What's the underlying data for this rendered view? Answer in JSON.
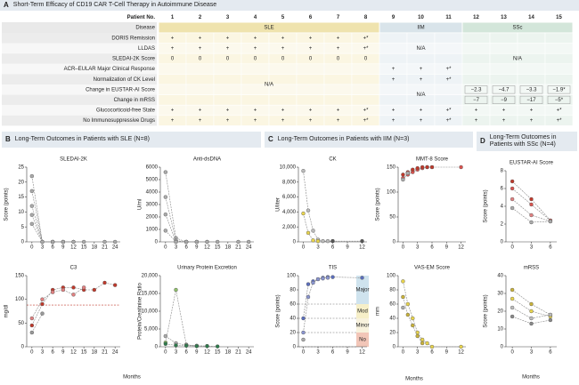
{
  "panel_a": {
    "label": "A",
    "title": "Short-Term Efficacy of CD19 CAR T-Cell Therapy in Autoimmune Disease",
    "patient_header": "Patient No.",
    "patients": [
      1,
      2,
      3,
      4,
      5,
      6,
      7,
      8,
      9,
      10,
      11,
      12,
      13,
      14,
      15
    ],
    "disease_header": "Disease",
    "diseases": [
      "SLE",
      "IIM",
      "SSc"
    ],
    "rows": [
      {
        "label": "DORIS Remission",
        "cells": [
          "+",
          "+",
          "+",
          "+",
          "+",
          "+",
          "+",
          "+*",
          null,
          null,
          null,
          null,
          null,
          null,
          null
        ]
      },
      {
        "label": "LLDAS",
        "cells": [
          "+",
          "+",
          "+",
          "+",
          "+",
          "+",
          "+",
          "+*",
          null,
          null,
          null,
          null,
          null,
          null,
          null
        ]
      },
      {
        "label": "SLEDAI-2K Score",
        "cells": [
          "0",
          "0",
          "0",
          "0",
          "0",
          "0",
          "0",
          "0",
          null,
          null,
          null,
          null,
          null,
          null,
          null
        ]
      },
      {
        "label": "ACR–EULAR Major Clinical Response",
        "cells": [
          null,
          null,
          null,
          null,
          null,
          null,
          null,
          null,
          "+",
          "+",
          "+*",
          null,
          null,
          null,
          null
        ]
      },
      {
        "label": "Normalization of CK Level",
        "cells": [
          null,
          null,
          null,
          null,
          null,
          null,
          null,
          null,
          "+",
          "+",
          "+*",
          null,
          null,
          null,
          null
        ]
      },
      {
        "label": "Change in EUSTAR-AI Score",
        "cells": [
          null,
          null,
          null,
          null,
          null,
          null,
          null,
          null,
          null,
          null,
          null,
          "−2.3",
          "−4.7",
          "−3.3",
          "−1.9*"
        ]
      },
      {
        "label": "Change in mRSS",
        "cells": [
          null,
          null,
          null,
          null,
          null,
          null,
          null,
          null,
          null,
          null,
          null,
          "−7",
          "−9",
          "−17",
          "−5*"
        ]
      },
      {
        "label": "Glucocorticoid-free State",
        "cells": [
          "+",
          "+",
          "+",
          "+",
          "+",
          "+",
          "+",
          "+*",
          "+",
          "+",
          "+*",
          "+",
          "+",
          "+",
          "+*"
        ]
      },
      {
        "label": "No Immunosuppressive Drugs",
        "cells": [
          "+",
          "+",
          "+",
          "+",
          "+",
          "+",
          "+",
          "+*",
          "+",
          "+",
          "+*",
          "+",
          "+",
          "+",
          "+*"
        ]
      }
    ],
    "na_blocks": [
      "N/A",
      "N/A",
      "N/A",
      "N/A"
    ]
  },
  "panels": [
    {
      "label": "B",
      "title": "Long-Term Outcomes in Patients with SLE (N=8)",
      "x_label": "Months"
    },
    {
      "label": "C",
      "title": "Long-Term Outcomes in Patients with IIM (N=3)",
      "x_label": "Months"
    },
    {
      "label": "D",
      "title": "Long-Term Outcomes in Patients with SSc (N=4)",
      "x_label": "Months"
    }
  ],
  "chart_data": [
    {
      "type": "line",
      "title": "SLEDAI-2K",
      "y_label": "Score (points)",
      "x": [
        0,
        3,
        6,
        9,
        12,
        15,
        18,
        21,
        24
      ],
      "xlim": [
        -1.5,
        25.5
      ],
      "xticks": [
        0,
        3,
        6,
        9,
        12,
        15,
        18,
        21,
        24
      ],
      "ylim": [
        0,
        25
      ],
      "yticks": [
        0,
        5,
        10,
        15,
        20,
        25
      ],
      "series": [
        {
          "color": "#aaaaaa",
          "values": [
            22,
            0,
            0,
            0,
            0,
            0,
            null,
            0,
            0
          ]
        },
        {
          "color": "#aaaaaa",
          "values": [
            17,
            0,
            0,
            0,
            0,
            null,
            null,
            null,
            null
          ]
        },
        {
          "color": "#aaaaaa",
          "values": [
            12,
            0,
            0,
            0,
            null,
            null,
            null,
            null,
            null
          ]
        },
        {
          "color": "#aaaaaa",
          "values": [
            9,
            0,
            0,
            null,
            null,
            null,
            null,
            null,
            null
          ]
        },
        {
          "color": "#aaaaaa",
          "values": [
            6,
            0,
            null,
            null,
            null,
            null,
            null,
            null,
            null
          ]
        }
      ]
    },
    {
      "type": "line",
      "title": "Anti-dsDNA",
      "y_label": "U/ml",
      "x": [
        0,
        3,
        6,
        9,
        12,
        15,
        18,
        21,
        24
      ],
      "xlim": [
        -1.5,
        25.5
      ],
      "xticks": [
        0,
        3,
        6,
        9,
        12,
        15,
        18,
        21,
        24
      ],
      "ylim": [
        0,
        6000
      ],
      "yticks": [
        0,
        1000,
        2000,
        3000,
        4000,
        5000,
        6000
      ],
      "series": [
        {
          "color": "#aaaaaa",
          "values": [
            5600,
            300,
            0,
            0,
            0,
            0,
            null,
            0,
            0
          ]
        },
        {
          "color": "#aaaaaa",
          "values": [
            3600,
            100,
            0,
            0,
            0,
            null,
            null,
            null,
            null
          ]
        },
        {
          "color": "#aaaaaa",
          "values": [
            2200,
            0,
            0,
            0,
            null,
            null,
            null,
            null,
            null
          ]
        },
        {
          "color": "#aaaaaa",
          "values": [
            900,
            0,
            0,
            null,
            null,
            null,
            null,
            null,
            null
          ]
        }
      ]
    },
    {
      "type": "line",
      "title": "C3",
      "y_label": "mg/dl",
      "x": [
        0,
        3,
        6,
        9,
        12,
        15,
        18,
        21,
        24
      ],
      "xlim": [
        -1.5,
        25.5
      ],
      "xticks": [
        0,
        3,
        6,
        9,
        12,
        15,
        18,
        21,
        24
      ],
      "ylim": [
        0,
        150
      ],
      "yticks": [
        0,
        50,
        100,
        150
      ],
      "reference_lines": [
        88
      ],
      "series": [
        {
          "color": "#c0392b",
          "values": [
            45,
            90,
            120,
            125,
            125,
            120,
            120,
            135,
            130
          ]
        },
        {
          "color": "#e08080",
          "values": [
            60,
            100,
            115,
            120,
            110,
            125,
            null,
            null,
            null
          ]
        },
        {
          "color": "#999999",
          "values": [
            30,
            70,
            null,
            null,
            null,
            null,
            null,
            null,
            null
          ]
        }
      ]
    },
    {
      "type": "line",
      "title": "Urinary Protein Excretion",
      "y_label": "Protein/Creatinine Ratio",
      "x": [
        0,
        3,
        6,
        9,
        12,
        15,
        18,
        21,
        24
      ],
      "xlim": [
        -1.5,
        25.5
      ],
      "xticks": [
        0,
        3,
        6,
        9,
        12,
        15,
        18,
        21,
        24
      ],
      "ylim": [
        0,
        20000
      ],
      "yticks": [
        0,
        {
          "value": 5000,
          "label": "5,000"
        },
        {
          "value": 10000,
          "label": "10,000"
        },
        {
          "value": 15000,
          "label": "15,000"
        },
        {
          "value": 20000,
          "label": "20,000"
        }
      ],
      "series": [
        {
          "color": "#8fbf6a",
          "values": [
            1200,
            16000,
            600,
            200,
            null,
            null,
            null,
            null,
            null
          ]
        },
        {
          "color": "#aaaaaa",
          "values": [
            3000,
            1000,
            500,
            300,
            200,
            null,
            null,
            null,
            null
          ]
        },
        {
          "color": "#2d7a4b",
          "values": [
            800,
            400,
            300,
            200,
            200,
            100,
            null,
            null,
            null
          ]
        }
      ]
    },
    {
      "type": "line",
      "title": "CK",
      "y_label": "U/liter",
      "x": [
        0,
        1,
        2,
        3,
        4,
        5,
        6,
        12
      ],
      "xlim": [
        -1,
        13
      ],
      "xticks": [
        0,
        3,
        6,
        9,
        12
      ],
      "ylim": [
        0,
        10000
      ],
      "yticks": [
        0,
        {
          "value": 2000,
          "label": "2,000"
        },
        {
          "value": 4000,
          "label": "4,000"
        },
        {
          "value": 6000,
          "label": "6,000"
        },
        {
          "value": 8000,
          "label": "8,000"
        },
        {
          "value": 10000,
          "label": "10,000"
        }
      ],
      "series": [
        {
          "color": "#bbbbbb",
          "values": [
            9500,
            4200,
            1500,
            300,
            100,
            100,
            100,
            null
          ]
        },
        {
          "color": "#e8d44d",
          "values": [
            3800,
            1200,
            200,
            100,
            null,
            null,
            null,
            null
          ]
        },
        {
          "color": "#555555",
          "values": [
            null,
            null,
            null,
            null,
            null,
            null,
            100,
            100
          ]
        }
      ]
    },
    {
      "type": "line",
      "title": "MMT-8 Score",
      "y_label": "Score (points)",
      "x": [
        0,
        1,
        2,
        3,
        4,
        5,
        6,
        12
      ],
      "xlim": [
        -1,
        13
      ],
      "xticks": [
        0,
        3,
        6,
        9,
        12
      ],
      "ylim": [
        0,
        150
      ],
      "yticks": [
        0,
        50,
        100,
        150
      ],
      "series": [
        {
          "color": "#d9534f",
          "values": [
            128,
            135,
            140,
            145,
            148,
            150,
            150,
            150
          ]
        },
        {
          "color": "#c0392b",
          "values": [
            135,
            140,
            145,
            148,
            150,
            150,
            150,
            null
          ]
        },
        {
          "color": "#aaaaaa",
          "values": [
            125,
            138,
            null,
            null,
            null,
            null,
            null,
            null
          ]
        }
      ]
    },
    {
      "type": "line",
      "title": "TIS",
      "y_label": "Score (points)",
      "x": [
        0,
        1,
        2,
        3,
        4,
        5,
        6,
        12
      ],
      "xlim": [
        -1,
        13
      ],
      "xticks": [
        0,
        3,
        6,
        9,
        12
      ],
      "ylim": [
        0,
        100
      ],
      "yticks": [
        0,
        20,
        40,
        60,
        80,
        100
      ],
      "bands": [
        {
          "label": "Major",
          "from": 60,
          "to": 100,
          "color": "#cfe3ee"
        },
        {
          "label": "Mod",
          "from": 40,
          "to": 60,
          "color": "#f6efc8"
        },
        {
          "label": "Minor",
          "from": 20,
          "to": 40,
          "color": "#f8f2dd"
        },
        {
          "label": "No",
          "from": 0,
          "to": 20,
          "color": "#f2c6b8"
        }
      ],
      "series": [
        {
          "color": "#5b6ebd",
          "values": [
            40,
            88,
            92,
            95,
            97,
            98,
            98,
            97
          ]
        },
        {
          "color": "#8a95d0",
          "values": [
            20,
            70,
            90,
            95,
            96,
            97,
            null,
            null
          ]
        },
        {
          "color": "#aaaaaa",
          "values": [
            10,
            null,
            null,
            null,
            null,
            null,
            null,
            null
          ]
        }
      ]
    },
    {
      "type": "line",
      "title": "VAS-EM Score",
      "y_label": "mm",
      "x": [
        0,
        1,
        2,
        3,
        4,
        5,
        6,
        12
      ],
      "xlim": [
        -1,
        13
      ],
      "xticks": [
        0,
        3,
        6,
        9,
        12
      ],
      "ylim": [
        0,
        100
      ],
      "yticks": [
        0,
        20,
        40,
        60,
        80,
        100
      ],
      "series": [
        {
          "color": "#e8d44d",
          "values": [
            92,
            60,
            40,
            20,
            10,
            5,
            0,
            0
          ]
        },
        {
          "color": "#c9b23a",
          "values": [
            70,
            45,
            30,
            15,
            5,
            null,
            null,
            null
          ]
        },
        {
          "color": "#aaaaaa",
          "values": [
            55,
            null,
            null,
            null,
            null,
            null,
            null,
            null
          ]
        }
      ]
    },
    {
      "type": "line",
      "title": "EUSTAR-AI Score",
      "y_label": "Score (points)",
      "x": [
        0,
        3,
        6
      ],
      "xlim": [
        -1,
        7
      ],
      "xticks": [
        0,
        3,
        6
      ],
      "ylim": [
        0,
        8
      ],
      "yticks": [
        0,
        2,
        4,
        6,
        8
      ],
      "series": [
        {
          "color": "#c0392b",
          "values": [
            6.8,
            4.8,
            2.4
          ]
        },
        {
          "color": "#d9534f",
          "values": [
            6,
            4.2,
            2.4
          ]
        },
        {
          "color": "#e08080",
          "values": [
            4.8,
            3,
            2.3
          ]
        },
        {
          "color": "#aaaaaa",
          "values": [
            3.8,
            2.2,
            2.3
          ]
        }
      ]
    },
    {
      "type": "line",
      "title": "mRSS",
      "y_label": "Score (points)",
      "x": [
        0,
        3,
        6
      ],
      "xlim": [
        -1,
        7
      ],
      "xticks": [
        0,
        3,
        6
      ],
      "ylim": [
        0,
        40
      ],
      "yticks": [
        0,
        10,
        20,
        30,
        40
      ],
      "series": [
        {
          "color": "#c9b23a",
          "values": [
            32,
            24,
            18
          ]
        },
        {
          "color": "#e8d44d",
          "values": [
            27,
            20,
            17
          ]
        },
        {
          "color": "#bbbbbb",
          "values": [
            22,
            16,
            18
          ]
        },
        {
          "color": "#888888",
          "values": [
            17,
            13,
            15
          ]
        }
      ]
    }
  ]
}
